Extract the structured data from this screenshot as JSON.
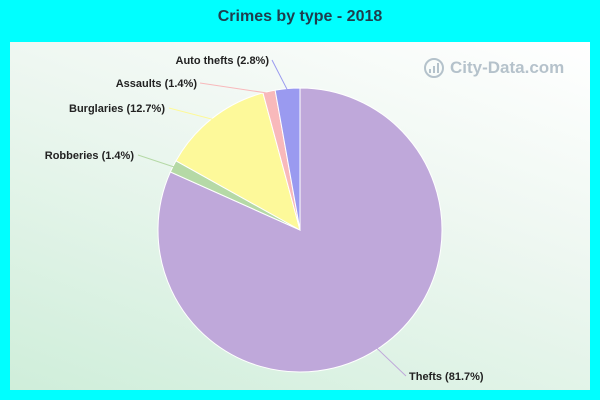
{
  "chart_data": {
    "type": "pie",
    "title": "Crimes by type - 2018",
    "slices": [
      {
        "label": "Thefts (81.7%)",
        "value": 81.7,
        "color": "#bfa8da"
      },
      {
        "label": "Robberies (1.4%)",
        "value": 1.4,
        "color": "#b5d9a6"
      },
      {
        "label": "Burglaries (12.7%)",
        "value": 12.7,
        "color": "#fdf99a"
      },
      {
        "label": "Assaults (1.4%)",
        "value": 1.4,
        "color": "#f8b9bb"
      },
      {
        "label": "Auto thefts (2.8%)",
        "value": 2.8,
        "color": "#9a9af0"
      }
    ]
  },
  "watermark": {
    "text": "City-Data.com"
  },
  "colors": {
    "background": "#00ffff",
    "title": "#1f3d4d"
  }
}
